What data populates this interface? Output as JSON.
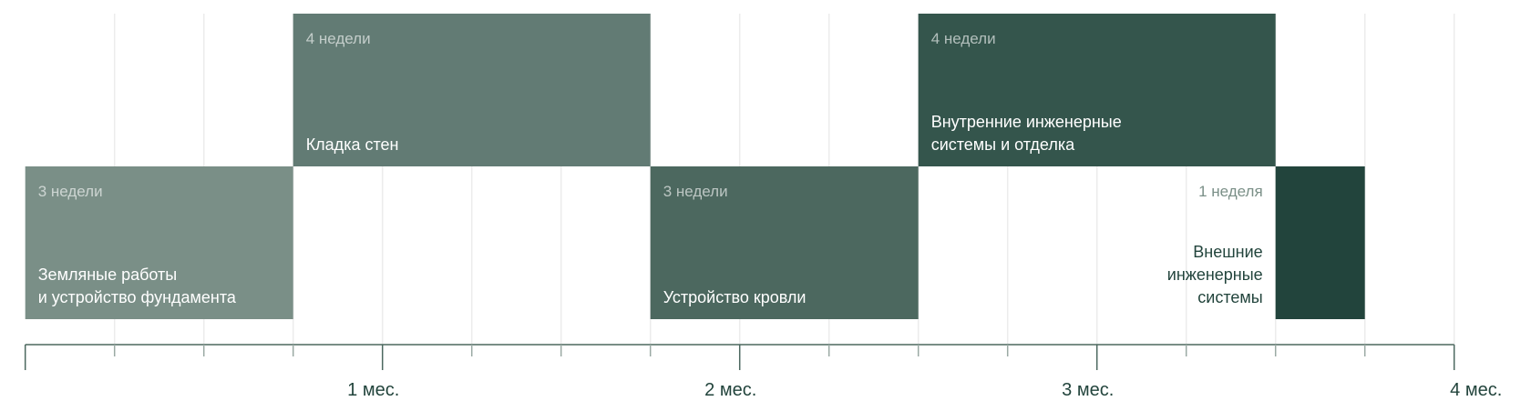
{
  "chart_data": {
    "type": "gantt",
    "x_unit": "weeks",
    "xlim": [
      0,
      16
    ],
    "grid": true,
    "ticks": [
      {
        "week": 4,
        "label": "1 мес."
      },
      {
        "week": 8,
        "label": "2 мес."
      },
      {
        "week": 12,
        "label": "3 мес."
      },
      {
        "week": 16,
        "label": "4 мес."
      }
    ],
    "tasks": [
      {
        "name_lines": [
          "Земляные работы",
          "и устройство фундамента"
        ],
        "duration_label": "3 недели",
        "start": 0,
        "end": 3,
        "row": 2,
        "color": "#7a8f87"
      },
      {
        "name_lines": [
          "Кладка стен"
        ],
        "duration_label": "4 недели",
        "start": 3,
        "end": 7,
        "row": 1,
        "color": "#627b74"
      },
      {
        "name_lines": [
          "Устройство кровли"
        ],
        "duration_label": "3 недели",
        "start": 7,
        "end": 10,
        "row": 2,
        "color": "#4c685f"
      },
      {
        "name_lines": [
          "Внутренние инженерные",
          "системы и отделка"
        ],
        "duration_label": "4 недели",
        "start": 10,
        "end": 14,
        "row": 1,
        "color": "#34554c"
      },
      {
        "name_lines": [
          "Внешние",
          "инженерные",
          "системы"
        ],
        "duration_label": "1 неделя",
        "start": 14,
        "end": 15,
        "row": 2,
        "color": "#22443c",
        "label_outside": true
      }
    ],
    "colors": {
      "axis": "#4c685f",
      "grid": "#ececec",
      "outside_text": "#22443c",
      "outside_duration": "#7a8f87"
    }
  }
}
